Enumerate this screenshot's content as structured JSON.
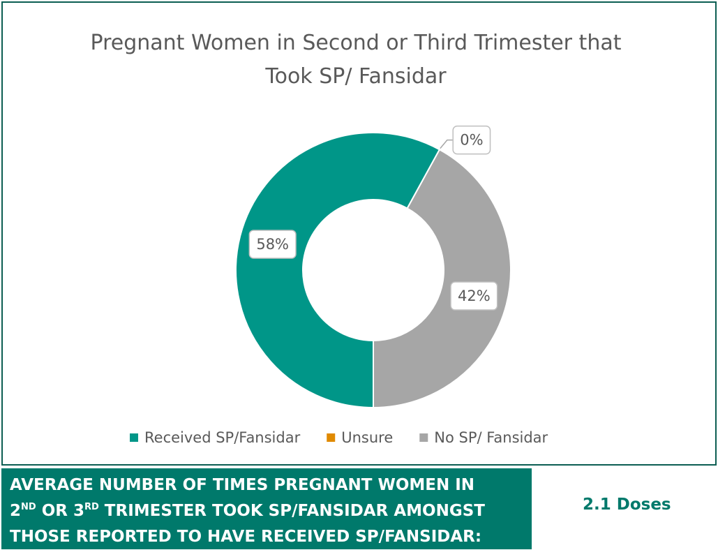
{
  "chart_data": {
    "type": "donut",
    "title": "Pregnant Women in Second or Third Trimester that Took SP/ Fansidar",
    "categories": [
      "Received SP/Fansidar",
      "Unsure",
      "No SP/ Fansidar"
    ],
    "values": [
      58,
      0,
      42
    ],
    "value_labels": [
      "58%",
      "0%",
      "42%"
    ],
    "colors": [
      "#009688",
      "#e08a00",
      "#a6a6a6"
    ],
    "legend": "bottom"
  },
  "callout": {
    "label_lines": [
      [
        "AVERAGE NUMBER OF TIMES PREGNANT WOMEN IN"
      ],
      [
        "2",
        "ND",
        " OR 3",
        "RD",
        " TRIMESTER TOOK SP/FANSIDAR AMONGST"
      ],
      [
        "THOSE REPORTED TO HAVE RECEIVED SP/FANSIDAR:"
      ]
    ],
    "value": "2.1 Doses"
  }
}
